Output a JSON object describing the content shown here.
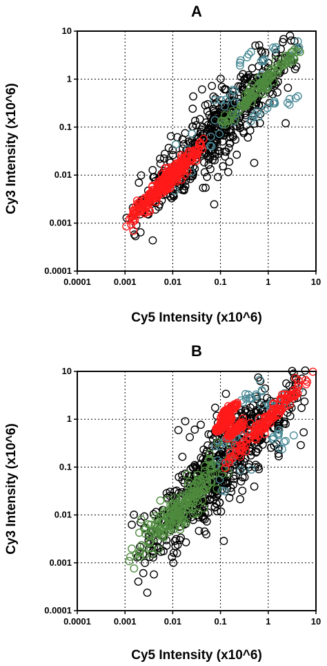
{
  "chart_data": [
    {
      "type": "scatter",
      "title": "A",
      "xlabel": "Cy5 Intensity (x10^6)",
      "ylabel": "Cy3 Intensity (x10^6)",
      "xscale": "log",
      "yscale": "log",
      "xlim": [
        0.0001,
        10
      ],
      "ylim": [
        0.0001,
        10
      ],
      "x_tick_labels": [
        "0.0001",
        "0.001",
        "0.01",
        "0.1",
        "1",
        "10"
      ],
      "y_tick_labels": [
        "0.0001",
        "0.001",
        "0.01",
        "0.1",
        "1",
        "10"
      ],
      "grid": true,
      "series": [
        {
          "color": "#000000",
          "distribution": "diagonal",
          "x_range": [
            0.001,
            6
          ],
          "spread_decades": 0.35,
          "count": 520
        },
        {
          "color": "#4a8a96",
          "distribution": "diagonal",
          "x_range": [
            0.0015,
            5
          ],
          "spread_decades": 0.25,
          "count": 70,
          "clusters": [
            {
              "x": 0.3,
              "y": 2.5
            },
            {
              "x": 1.0,
              "y": 3.0
            },
            {
              "x": 3.0,
              "y": 3.0
            },
            {
              "x": 1.2,
              "y": 0.3
            },
            {
              "x": 3.0,
              "y": 0.35
            },
            {
              "x": 0.5,
              "y": 0.15
            },
            {
              "x": 0.15,
              "y": 0.5
            }
          ]
        },
        {
          "color": "#4e8a3e",
          "distribution": "diagonal",
          "x_range": [
            0.08,
            6
          ],
          "spread_decades": 0.08,
          "count": 120
        },
        {
          "color": "#ff1a1a",
          "distribution": "diagonal",
          "x_range": [
            0.001,
            0.06
          ],
          "spread_decades": 0.1,
          "count": 320
        }
      ]
    },
    {
      "type": "scatter",
      "title": "B",
      "xlabel": "Cy5 Intensity (x10^6)",
      "ylabel": "Cy3 Intensity (x10^6)",
      "xscale": "log",
      "yscale": "log",
      "xlim": [
        0.0001,
        10
      ],
      "ylim": [
        0.0001,
        10
      ],
      "x_tick_labels": [
        "0.0001",
        "0.001",
        "0.01",
        "0.1",
        "1",
        "10"
      ],
      "y_tick_labels": [
        "0.0001",
        "0.001",
        "0.01",
        "0.1",
        "1",
        "10"
      ],
      "grid": true,
      "series": [
        {
          "color": "#000000",
          "distribution": "diagonal",
          "x_range": [
            0.001,
            9
          ],
          "spread_decades": 0.45,
          "count": 620
        },
        {
          "color": "#4a8a96",
          "distribution": "diagonal",
          "x_range": [
            0.05,
            3
          ],
          "spread_decades": 0.3,
          "count": 80,
          "clusters": [
            {
              "x": 0.3,
              "y": 2.5
            },
            {
              "x": 0.5,
              "y": 3.0
            },
            {
              "x": 1.5,
              "y": 2.5
            },
            {
              "x": 3.0,
              "y": 3.0
            },
            {
              "x": 2.5,
              "y": 0.35
            },
            {
              "x": 1.2,
              "y": 0.4
            },
            {
              "x": 0.1,
              "y": 0.3
            },
            {
              "x": 0.2,
              "y": 0.5
            }
          ]
        },
        {
          "color": "#4e8a3e",
          "distribution": "diagonal",
          "x_range": [
            0.001,
            0.2
          ],
          "spread_decades": 0.2,
          "count": 220
        },
        {
          "color": "#ff1a1a",
          "distribution": "diagonal",
          "x_range": [
            0.1,
            9
          ],
          "spread_decades": 0.1,
          "count": 320,
          "clusters": [
            {
              "x": 0.12,
              "y": 0.8
            },
            {
              "x": 0.2,
              "y": 0.6
            },
            {
              "x": 0.15,
              "y": 1.5
            }
          ]
        }
      ]
    }
  ]
}
